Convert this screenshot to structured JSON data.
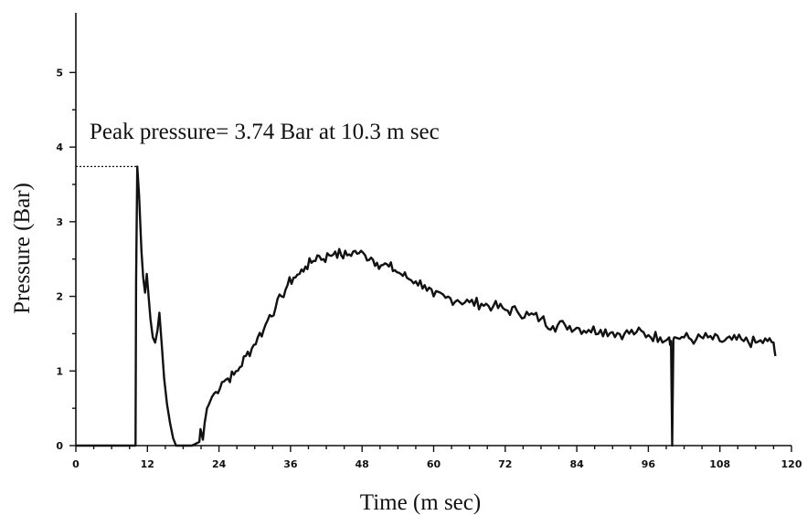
{
  "chart_data": {
    "type": "line",
    "title": "",
    "xlabel": "Time (m sec)",
    "ylabel": "Pressure (Bar)",
    "xlim": [
      0,
      120
    ],
    "ylim": [
      0,
      5.8
    ],
    "xticks": [
      0,
      12,
      24,
      36,
      48,
      60,
      72,
      84,
      96,
      108,
      120
    ],
    "yticks": [
      0,
      1,
      2,
      3,
      4,
      5
    ],
    "grid": false,
    "annotation": "Peak pressure= 3.74 Bar at 10.3 m sec",
    "peak": {
      "x": 10.3,
      "y": 3.74
    },
    "series": [
      {
        "x": [
          0,
          10.0,
          10.1,
          10.3,
          10.6,
          11.0,
          11.3,
          11.6,
          11.9,
          12.2,
          12.5,
          12.9,
          13.3,
          13.7,
          14.0,
          14.4,
          14.8,
          15.3,
          15.8,
          16.3,
          16.8,
          17.2,
          18.0,
          19.5,
          20.7,
          20.9,
          21.3,
          21.6,
          22.0,
          22.3,
          22.8,
          23.5,
          24.5,
          25.5,
          26.5,
          27.5,
          28.5,
          29.5,
          30.5,
          31.5,
          32.5,
          33.5,
          34.5,
          35.5,
          36.5,
          37.5,
          38.5,
          39.5,
          40.5,
          41.5,
          42.5,
          43.5,
          44.5,
          45.5,
          46.5,
          47.5,
          48.5,
          49.5,
          50.5,
          51.5,
          52.5,
          53.5,
          54.5,
          55.5,
          57.0,
          58.5,
          60.0,
          62.0,
          64.0,
          66.0,
          68.0,
          70.0,
          72.0,
          74.0,
          76.0,
          78.0,
          80.0,
          82.0,
          84.0,
          86.0,
          88.0,
          90.0,
          92.0,
          94.0,
          96.0,
          98.0,
          99.5,
          99.8,
          100.0,
          100.2,
          100.5,
          102.0,
          104.0,
          106.0,
          108.0,
          110.0,
          112.0,
          114.0,
          116.0,
          117.0,
          117.3
        ],
        "y": [
          0,
          0,
          2.2,
          3.74,
          3.35,
          2.6,
          2.25,
          2.05,
          2.3,
          2.0,
          1.7,
          1.45,
          1.38,
          1.55,
          1.78,
          1.35,
          0.9,
          0.55,
          0.3,
          0.1,
          0,
          0,
          0,
          0,
          0.05,
          0.22,
          0.08,
          0.3,
          0.5,
          0.55,
          0.65,
          0.72,
          0.85,
          0.9,
          0.95,
          1.05,
          1.2,
          1.3,
          1.45,
          1.55,
          1.75,
          1.85,
          2.0,
          2.15,
          2.25,
          2.3,
          2.4,
          2.45,
          2.55,
          2.5,
          2.55,
          2.6,
          2.55,
          2.55,
          2.6,
          2.58,
          2.55,
          2.52,
          2.45,
          2.42,
          2.4,
          2.35,
          2.3,
          2.25,
          2.2,
          2.15,
          2.0,
          1.98,
          1.95,
          1.92,
          1.9,
          1.87,
          1.82,
          1.8,
          1.75,
          1.7,
          1.6,
          1.62,
          1.58,
          1.55,
          1.55,
          1.52,
          1.5,
          1.52,
          1.48,
          1.45,
          1.45,
          1.4,
          0,
          1.42,
          1.45,
          1.45,
          1.42,
          1.45,
          1.4,
          1.42,
          1.4,
          1.38,
          1.4,
          1.38,
          1.2
        ]
      }
    ]
  }
}
